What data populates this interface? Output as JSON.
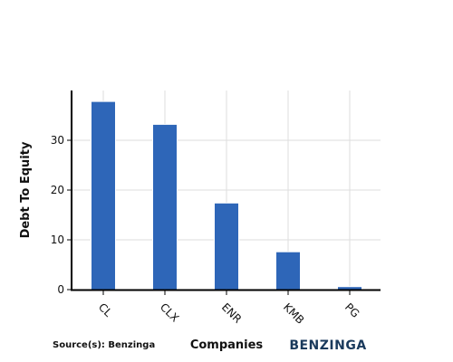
{
  "chart_data": {
    "type": "bar",
    "categories": [
      "CL",
      "CLX",
      "ENR",
      "KMB",
      "PG"
    ],
    "values": [
      37.8,
      33.2,
      17.4,
      7.6,
      0.6
    ],
    "xlabel": "Companies",
    "ylabel": "Debt To Equity",
    "ylim": [
      0,
      40
    ],
    "yticks": [
      0,
      10,
      20,
      30
    ],
    "grid": true,
    "bar_color": "#2e66b8"
  },
  "footer": {
    "source": "Source(s): Benzinga",
    "brand": "BENZINGA"
  }
}
